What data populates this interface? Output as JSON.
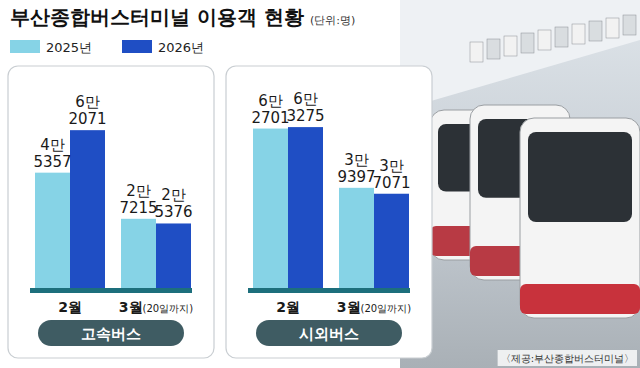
{
  "title": "부산종합버스터미널 이용객 현황",
  "unit": "(단위:명)",
  "source": "〈제공:부산종합버스터미널〉",
  "chart_data": [
    {
      "type": "bar",
      "title": "고속버스",
      "categories": [
        "2월",
        "3월(20일까지)"
      ],
      "series": [
        {
          "name": "2025년",
          "color": "#86d3e6",
          "values": [
            45357,
            27215
          ],
          "value_labels": [
            "4만 5357",
            "2만 7215"
          ]
        },
        {
          "name": "2026년",
          "color": "#1f4ec4",
          "values": [
            62071,
            25376
          ],
          "value_labels": [
            "6만 2071",
            "2만 5376"
          ]
        }
      ],
      "ylim": [
        0,
        70000
      ],
      "tick_labels": "x",
      "grid": false,
      "data_labels": true,
      "legend": "top"
    },
    {
      "type": "bar",
      "title": "시외버스",
      "categories": [
        "2월",
        "3월(20일까지)"
      ],
      "series": [
        {
          "name": "2025년",
          "color": "#86d3e6",
          "values": [
            62701,
            39397
          ],
          "value_labels": [
            "6만 2701",
            "3만 9397"
          ]
        },
        {
          "name": "2026년",
          "color": "#1f4ec4",
          "values": [
            63275,
            37071
          ],
          "value_labels": [
            "6만 3275",
            "3만 7071"
          ]
        }
      ],
      "ylim": [
        0,
        70000
      ],
      "tick_labels": "x",
      "grid": false,
      "data_labels": true
    }
  ]
}
